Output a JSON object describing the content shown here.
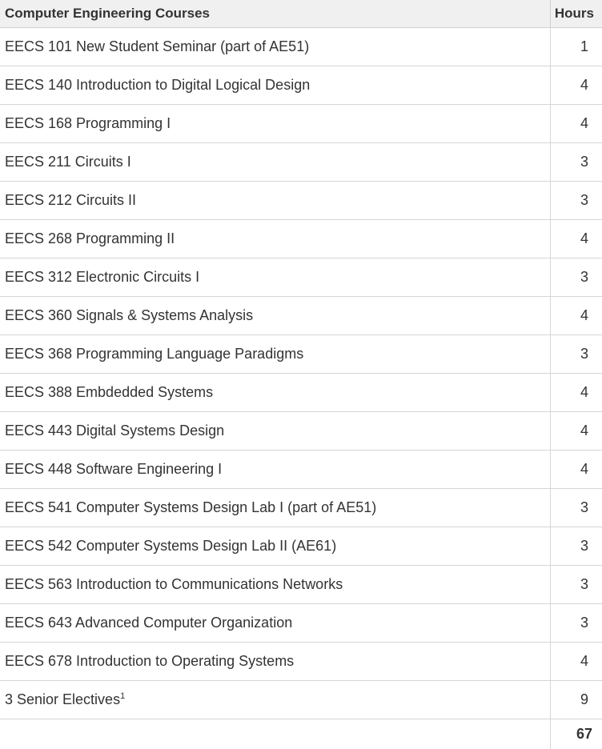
{
  "header": {
    "course_label": "Computer Engineering Courses",
    "hours_label": "Hours"
  },
  "rows": [
    {
      "course": "EECS 101 New Student Seminar (part of AE51)",
      "hours": "1"
    },
    {
      "course": "EECS 140 Introduction to Digital Logical Design",
      "hours": "4"
    },
    {
      "course": "EECS 168 Programming I",
      "hours": "4"
    },
    {
      "course": "EECS 211 Circuits I",
      "hours": "3"
    },
    {
      "course": "EECS 212 Circuits II",
      "hours": "3"
    },
    {
      "course": "EECS 268 Programming II",
      "hours": "4"
    },
    {
      "course": "EECS 312 Electronic Circuits I",
      "hours": "3"
    },
    {
      "course": "EECS 360 Signals & Systems Analysis",
      "hours": "4"
    },
    {
      "course": "EECS 368 Programming Language Paradigms",
      "hours": "3"
    },
    {
      "course": "EECS 388 Embdedded Systems",
      "hours": "4"
    },
    {
      "course": "EECS 443 Digital Systems Design",
      "hours": "4"
    },
    {
      "course": "EECS 448 Software Engineering I",
      "hours": "4"
    },
    {
      "course": "EECS 541 Computer Systems Design Lab I (part of AE51)",
      "hours": "3"
    },
    {
      "course": "EECS 542 Computer Systems Design Lab II (AE61)",
      "hours": "3"
    },
    {
      "course": "EECS 563 Introduction to Communications Networks",
      "hours": "3"
    },
    {
      "course": "EECS 643 Advanced Computer Organization",
      "hours": "3"
    },
    {
      "course": "EECS 678 Introduction to Operating Systems",
      "hours": "4"
    }
  ],
  "electives": {
    "course": "3 Senior Electives",
    "footnote": "1",
    "hours": "9"
  },
  "total": {
    "hours": "67"
  }
}
